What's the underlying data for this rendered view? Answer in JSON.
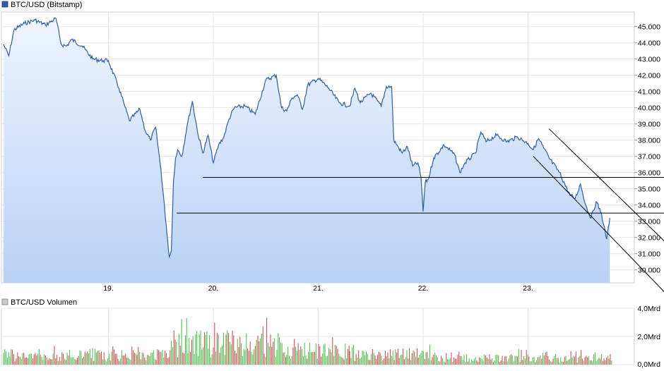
{
  "chart_data": [
    {
      "type": "area",
      "title": "BTC/USD (Bitstamp)",
      "series_color": "#2f5f9e",
      "fill_top": "#eef4ff",
      "fill_bottom": "#b9d1f5",
      "grid": true,
      "ylim": [
        29200,
        45900
      ],
      "x_categories": [
        "19.",
        "20.",
        "21.",
        "22.",
        "23."
      ],
      "y_ticks": [
        "30.000",
        "31.000",
        "32.000",
        "33.000",
        "34.000",
        "35.000",
        "36.000",
        "37.000",
        "38.000",
        "39.000",
        "40.000",
        "41.000",
        "42.000",
        "43.000",
        "44.000",
        "45.000"
      ],
      "y_tick_values": [
        30000,
        31000,
        32000,
        33000,
        34000,
        35000,
        36000,
        37000,
        38000,
        39000,
        40000,
        41000,
        42000,
        43000,
        44000,
        45000
      ],
      "x": [
        18.0,
        18.05,
        18.1,
        18.2,
        18.3,
        18.4,
        18.5,
        18.55,
        18.6,
        18.65,
        18.75,
        18.85,
        18.95,
        19.0,
        19.1,
        19.15,
        19.2,
        19.3,
        19.35,
        19.4,
        19.45,
        19.5,
        19.55,
        19.58,
        19.6,
        19.62,
        19.64,
        19.66,
        19.7,
        19.75,
        19.8,
        19.85,
        19.9,
        19.95,
        20.0,
        20.05,
        20.1,
        20.15,
        20.2,
        20.3,
        20.4,
        20.5,
        20.6,
        20.65,
        20.7,
        20.75,
        20.8,
        20.85,
        20.9,
        21.0,
        21.1,
        21.2,
        21.3,
        21.35,
        21.4,
        21.5,
        21.6,
        21.65,
        21.7,
        21.72,
        21.75,
        21.8,
        21.85,
        21.9,
        21.95,
        21.98,
        22.0,
        22.02,
        22.05,
        22.1,
        22.2,
        22.3,
        22.35,
        22.4,
        22.5,
        22.55,
        22.6,
        22.7,
        22.8,
        22.9,
        23.0,
        23.05,
        23.1,
        23.15,
        23.2,
        23.3,
        23.4,
        23.45,
        23.5,
        23.55,
        23.6,
        23.65,
        23.7,
        23.72,
        23.75,
        23.78
      ],
      "y": [
        43.9,
        43.2,
        44.8,
        45.2,
        45.4,
        45.1,
        45.5,
        43.9,
        43.8,
        44.2,
        43.8,
        43.0,
        42.9,
        42.9,
        41.2,
        40.2,
        39.2,
        39.9,
        38.6,
        38.0,
        38.8,
        36.2,
        32.8,
        30.8,
        31.2,
        35.5,
        36.9,
        37.4,
        37.0,
        38.9,
        40.4,
        38.5,
        37.2,
        38.3,
        36.6,
        37.7,
        38.2,
        39.3,
        40.0,
        40.1,
        39.6,
        41.7,
        42.0,
        40.0,
        39.8,
        40.6,
        40.8,
        39.9,
        41.4,
        41.8,
        41.2,
        40.3,
        40.1,
        41.2,
        40.3,
        40.9,
        40.1,
        41.3,
        41.3,
        38.0,
        37.7,
        37.2,
        37.6,
        36.4,
        36.6,
        35.7,
        33.6,
        35.4,
        35.6,
        36.9,
        37.7,
        37.1,
        36.0,
        36.6,
        37.2,
        38.5,
        37.9,
        38.3,
        37.9,
        38.2,
        37.8,
        37.4,
        38.1,
        37.5,
        36.9,
        36.0,
        34.6,
        34.4,
        35.3,
        34.0,
        33.2,
        34.2,
        33.5,
        32.8,
        31.9,
        33.2
      ],
      "y_scale": 1000,
      "lines": [
        {
          "x1": 19.9,
          "y1": 35700,
          "x2": 24.6,
          "y2": 35700
        },
        {
          "x1": 19.65,
          "y1": 33500,
          "x2": 24.6,
          "y2": 33500
        },
        {
          "x1": 23.05,
          "y1": 37000,
          "x2": 24.5,
          "y2": 27300
        },
        {
          "x1": 23.2,
          "y1": 38700,
          "x2": 24.55,
          "y2": 30200
        }
      ]
    },
    {
      "type": "bar",
      "title": "BTC/USD Volumen",
      "up_color": "#46b846",
      "down_color": "#c34646",
      "grid": true,
      "y_ticks": [
        "0,0Mrd",
        "2,0Mrd",
        "4,0Mrd"
      ],
      "y_tick_values": [
        0,
        2,
        4
      ],
      "ylim": [
        0,
        4.0
      ],
      "unit": "Mrd",
      "groups": [
        {
          "from": 18.0,
          "to": 19.6,
          "base": 0.9,
          "amp": 0.5
        },
        {
          "from": 19.6,
          "to": 20.7,
          "base": 2.0,
          "amp": 1.9
        },
        {
          "from": 20.7,
          "to": 21.3,
          "base": 1.2,
          "amp": 0.9
        },
        {
          "from": 21.3,
          "to": 22.1,
          "base": 0.9,
          "amp": 0.6
        },
        {
          "from": 22.1,
          "to": 23.8,
          "base": 0.6,
          "amp": 0.5
        }
      ]
    }
  ]
}
